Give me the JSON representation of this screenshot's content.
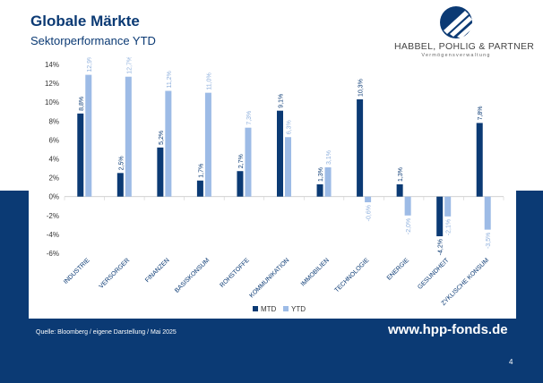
{
  "header": {
    "title": "Globale Märkte",
    "subtitle": "Sektorperformance YTD"
  },
  "logo": {
    "name": "HABBEL, POHLIG & PARTNER",
    "tagline": "Vermögensverwaltung",
    "icon": "hpp-emblem-icon"
  },
  "footer": {
    "source": "Quelle: Bloomberg / eigene Darstellung / Mai 2025",
    "url": "www.hpp-fonds.de",
    "page": "4"
  },
  "colors": {
    "mtd": "#0b3a74",
    "ytd": "#9dbbe6",
    "band": "#0b3a74"
  },
  "chart_data": {
    "type": "bar",
    "categories": [
      "INDUSTRIE",
      "VERSORGER",
      "FINANZEN",
      "BASISKONSUM",
      "ROHSTOFFE",
      "KOMMUNIKATION",
      "IMMOBILIEN",
      "TECHNOLOGIE",
      "ENERGIE",
      "GESUNDHEIT",
      "ZYKLISCHE KONSUM"
    ],
    "series": [
      {
        "name": "MTD",
        "values": [
          8.8,
          2.5,
          5.2,
          1.7,
          2.7,
          9.1,
          1.3,
          10.3,
          1.3,
          -4.2,
          7.8
        ],
        "labels": [
          "8,8%",
          "2,5%",
          "5,2%",
          "1,7%",
          "2,7%",
          "9,1%",
          "1,3%",
          "10,3%",
          "1,3%",
          "-4,2%",
          "7,8%"
        ]
      },
      {
        "name": "YTD",
        "values": [
          12.9,
          12.7,
          11.2,
          11.0,
          7.3,
          6.3,
          3.1,
          -0.6,
          -2.0,
          -2.1,
          -3.5
        ],
        "labels": [
          "12,9%",
          "12,7%",
          "11,2%",
          "11,0%",
          "7,3%",
          "6,3%",
          "3,1%",
          "-0,6%",
          "-2,0%",
          "-2,1%",
          "-3,5%"
        ]
      }
    ],
    "ylim": [
      -6,
      14
    ],
    "yticks": [
      "-6%",
      "-4%",
      "-2%",
      "0%",
      "2%",
      "4%",
      "6%",
      "8%",
      "10%",
      "12%",
      "14%"
    ],
    "ytick_values": [
      -6,
      -4,
      -2,
      0,
      2,
      4,
      6,
      8,
      10,
      12,
      14
    ],
    "legend": "bottom-center",
    "grid": false
  }
}
